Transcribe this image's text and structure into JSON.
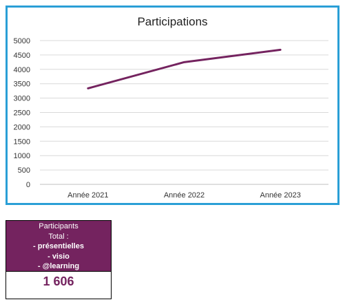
{
  "chart_data": {
    "type": "line",
    "title": "Participations",
    "categories": [
      "Année 2021",
      "Année 2022",
      "Année 2023"
    ],
    "series": [
      {
        "values": [
          3340,
          4250,
          4680
        ],
        "color": "#74235f"
      }
    ],
    "ylim": [
      0,
      5000
    ],
    "yticks": [
      "5000",
      "4500",
      "4000",
      "3500",
      "3000",
      "2500",
      "2000",
      "1500",
      "1000",
      "500",
      "0"
    ],
    "grid": true,
    "border_color": "#2a9fd6"
  },
  "card": {
    "line1": "Participants",
    "line2": "Total :",
    "line3": "-  présentielles",
    "line4": "- visio",
    "line5": "- @learning",
    "total": "1 606",
    "color": "#74235f"
  }
}
